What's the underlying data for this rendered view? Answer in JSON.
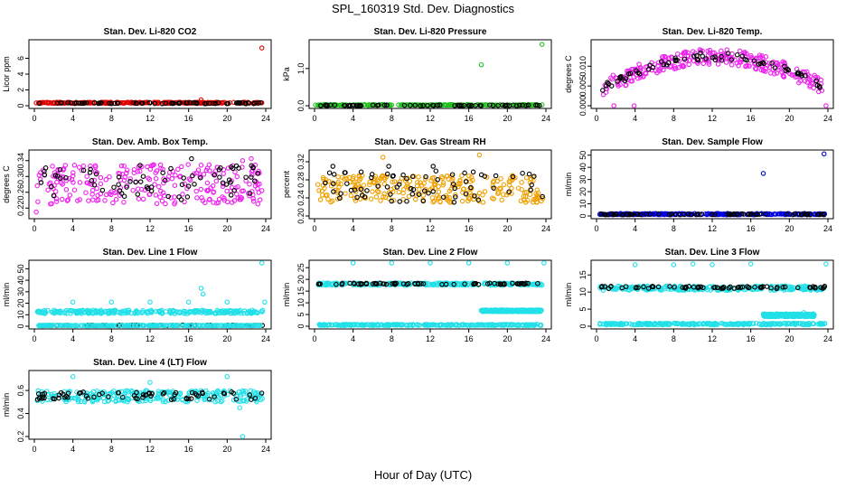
{
  "figure": {
    "title": "SPL_160319  Std. Dev. Diagnostics",
    "x_label": "Hour of Day (UTC)"
  },
  "chart_data": [
    {
      "id": "co2",
      "type": "scatter",
      "title": "Stan. Dev. Li-820 CO2",
      "ylabel": "Licor ppm",
      "xlim": [
        0,
        24
      ],
      "ylim": [
        0,
        8
      ],
      "yticks": [
        0,
        2,
        4,
        6
      ],
      "xticks": [
        0,
        4,
        8,
        12,
        16,
        20,
        24
      ],
      "colors": [
        "#e00000",
        "#000000"
      ],
      "series": [
        {
          "color": "#e00000",
          "baseline": [
            0.3,
            0.45
          ],
          "x": [
            0.2,
            17.3,
            23.6
          ],
          "y": [
            0.35,
            0.75,
            7.3
          ]
        },
        {
          "color": "#000000",
          "baseline": [
            0.25,
            0.4
          ],
          "x": [],
          "y": []
        }
      ]
    },
    {
      "id": "pressure",
      "type": "scatter",
      "title": "Stan. Dev. Li-820 Pressure",
      "ylabel": "kPa",
      "xlim": [
        0,
        24
      ],
      "ylim": [
        0,
        1.7
      ],
      "yticks": [
        0.0,
        1.0
      ],
      "ytick_labels": [
        "0.0",
        "1.0"
      ],
      "xticks": [
        0,
        4,
        8,
        12,
        16,
        20,
        24
      ],
      "colors": [
        "#20c020",
        "#000000"
      ],
      "series": [
        {
          "color": "#20c020",
          "baseline": [
            0.01,
            0.03
          ],
          "x": [
            0.1,
            17.3,
            23.6
          ],
          "y": [
            0.02,
            1.1,
            1.65
          ]
        },
        {
          "color": "#000000",
          "baseline": [
            0.0,
            0.02
          ],
          "x": [],
          "y": []
        }
      ]
    },
    {
      "id": "temp",
      "type": "scatter",
      "title": "Stan. Dev. Li-820 Temp.",
      "ylabel": "degrees C",
      "xlim": [
        0,
        24
      ],
      "ylim": [
        0,
        0.016
      ],
      "yticks": [
        0.0,
        0.005,
        0.01
      ],
      "ytick_labels": [
        "0.000",
        "0.005",
        "0.010"
      ],
      "xticks": [
        0,
        4,
        8,
        12,
        16,
        20,
        24
      ],
      "colors": [
        "#ee22ee",
        "#000000"
      ],
      "series": [
        {
          "color": "#ee22ee",
          "profile": "hump",
          "x": [
            1.8,
            3.9,
            23.8
          ],
          "y": [
            0.0,
            0.0,
            0.0
          ]
        },
        {
          "color": "#000000",
          "profile": "hump",
          "x": [],
          "y": []
        }
      ]
    },
    {
      "id": "ambbox",
      "type": "scatter",
      "title": "Stan. Dev. Amb. Box Temp.",
      "ylabel": "degrees C",
      "xlim": [
        0,
        24
      ],
      "ylim": [
        0.2,
        0.36
      ],
      "yticks": [
        0.22,
        0.26,
        0.3,
        0.34
      ],
      "ytick_labels": [
        "0.22",
        "0.26",
        "0.30",
        "0.34"
      ],
      "xticks": [
        0,
        4,
        8,
        12,
        16,
        20,
        24
      ],
      "colors": [
        "#ee22ee",
        "#000000"
      ],
      "series": [
        {
          "color": "#ee22ee",
          "baseline": [
            0.23,
            0.33
          ],
          "x": [
            0.2,
            21.6,
            22.5
          ],
          "y": [
            0.21,
            0.34,
            0.345
          ]
        },
        {
          "color": "#000000",
          "baseline": [
            0.24,
            0.33
          ],
          "x": [
            16.3
          ],
          "y": [
            0.345
          ]
        }
      ]
    },
    {
      "id": "rh",
      "type": "scatter",
      "title": "Stan. Dev. Gas Stream RH",
      "ylabel": "percent",
      "xlim": [
        0,
        24
      ],
      "ylim": [
        0.2,
        0.34
      ],
      "yticks": [
        0.2,
        0.24,
        0.28,
        0.32
      ],
      "ytick_labels": [
        "0.20",
        "0.24",
        "0.28",
        "0.32"
      ],
      "xticks": [
        0,
        4,
        8,
        12,
        16,
        20,
        24
      ],
      "colors": [
        "#f0a000",
        "#000000"
      ],
      "series": [
        {
          "color": "#f0a000",
          "baseline": [
            0.23,
            0.29
          ],
          "x": [
            7.1,
            17.1
          ],
          "y": [
            0.33,
            0.335
          ]
        },
        {
          "color": "#000000",
          "baseline": [
            0.23,
            0.3
          ],
          "x": [
            1.9,
            7.7,
            12.3
          ],
          "y": [
            0.31,
            0.31,
            0.31
          ]
        }
      ]
    },
    {
      "id": "sampleflow",
      "type": "scatter",
      "title": "Stan. Dev. Sample Flow",
      "ylabel": "ml/min",
      "xlim": [
        0,
        24
      ],
      "ylim": [
        0,
        52
      ],
      "yticks": [
        0,
        10,
        20,
        30,
        40,
        50
      ],
      "xticks": [
        0,
        4,
        8,
        12,
        16,
        20,
        24
      ],
      "colors": [
        "#0000e0",
        "#000000"
      ],
      "series": [
        {
          "color": "#0000e0",
          "baseline": [
            1.0,
            2.0
          ],
          "x": [
            17.3,
            23.6
          ],
          "y": [
            35.0,
            51.0
          ]
        },
        {
          "color": "#000000",
          "baseline": [
            1.0,
            1.8
          ],
          "x": [],
          "y": []
        }
      ]
    },
    {
      "id": "line1",
      "type": "scatter",
      "title": "Stan. Dev. Line 1 Flow",
      "ylabel": "ml/min",
      "xlim": [
        0,
        24
      ],
      "ylim": [
        0,
        55
      ],
      "yticks": [
        0,
        10,
        20,
        30,
        40,
        50
      ],
      "xticks": [
        0,
        4,
        8,
        12,
        16,
        20,
        24
      ],
      "colors": [
        "#22e0e8",
        "#000000"
      ],
      "series": [
        {
          "color": "#22e0e8",
          "baseline": [
            11.0,
            14.0
          ],
          "x": [
            4.0,
            8.0,
            12.0,
            16.0,
            17.3,
            17.5,
            20.0,
            23.6,
            23.9
          ],
          "y": [
            21.0,
            21.0,
            21.0,
            21.0,
            33.0,
            28.0,
            21.0,
            55.0,
            21.0
          ]
        },
        {
          "color": "#000000",
          "baseline": [
            0.5,
            1.0
          ],
          "x": [],
          "y": []
        },
        {
          "color": "#22e0e8",
          "baseline": [
            0.4,
            0.9
          ],
          "x": [],
          "y": []
        }
      ]
    },
    {
      "id": "line2",
      "type": "scatter",
      "title": "Stan. Dev. Line 2 Flow",
      "ylabel": "ml/min",
      "xlim": [
        0,
        24
      ],
      "ylim": [
        0,
        27
      ],
      "yticks": [
        0,
        5,
        10,
        15,
        20,
        25
      ],
      "xticks": [
        0,
        4,
        8,
        12,
        16,
        20,
        24
      ],
      "colors": [
        "#22e0e8",
        "#000000"
      ],
      "series": [
        {
          "color": "#22e0e8",
          "baseline": [
            17.5,
            18.5
          ],
          "x": [
            4.0,
            8.0,
            12.0,
            16.0,
            20.0,
            23.8
          ],
          "y": [
            27.0,
            27.0,
            27.0,
            27.0,
            27.0,
            27.0
          ]
        },
        {
          "color": "#000000",
          "baseline": [
            17.8,
            18.4
          ],
          "x": [],
          "y": []
        },
        {
          "color": "#22e0e8",
          "baseline": [
            0.3,
            0.8
          ],
          "x": [],
          "y": []
        },
        {
          "color": "#22e0e8",
          "baseline": [
            6.2,
            7.0
          ],
          "x_range": [
            17.3,
            24
          ],
          "x": [],
          "y": []
        }
      ]
    },
    {
      "id": "line3",
      "type": "scatter",
      "title": "Stan. Dev. Line 3 Flow",
      "ylabel": "ml/min",
      "xlim": [
        0,
        24
      ],
      "ylim": [
        0,
        18.5
      ],
      "yticks": [
        0,
        5,
        10,
        15
      ],
      "xticks": [
        0,
        4,
        8,
        12,
        16,
        20,
        24
      ],
      "colors": [
        "#22e0e8",
        "#000000"
      ],
      "series": [
        {
          "color": "#22e0e8",
          "baseline": [
            10.5,
            11.8
          ],
          "x": [
            4.0,
            8.0,
            10.0,
            12.0,
            16.0,
            23.8
          ],
          "y": [
            18.0,
            18.0,
            18.2,
            18.0,
            18.2,
            18.2
          ]
        },
        {
          "color": "#000000",
          "baseline": [
            11.0,
            11.7
          ],
          "x": [],
          "y": []
        },
        {
          "color": "#22e0e8",
          "baseline": [
            0.4,
            0.9
          ],
          "x": [],
          "y": []
        },
        {
          "color": "#22e0e8",
          "baseline": [
            2.8,
            3.6
          ],
          "x_range": [
            17.3,
            23
          ],
          "x": [
            21.5
          ],
          "y": [
            4.0
          ]
        }
      ]
    },
    {
      "id": "line4",
      "type": "scatter",
      "title": "Stan. Dev. Line 4 (LT) Flow",
      "ylabel": "ml/min",
      "xlim": [
        0,
        24
      ],
      "ylim": [
        0.2,
        0.75
      ],
      "yticks": [
        0.2,
        0.4,
        0.6
      ],
      "ytick_labels": [
        "0.2",
        "0.4",
        "0.6"
      ],
      "xticks": [
        0,
        4,
        8,
        12,
        16,
        20,
        24
      ],
      "colors": [
        "#22e0e8",
        "#000000"
      ],
      "series": [
        {
          "color": "#22e0e8",
          "baseline": [
            0.5,
            0.6
          ],
          "x": [
            4.0,
            12.0,
            20.0,
            21.6,
            21.3
          ],
          "y": [
            0.72,
            0.67,
            0.72,
            0.2,
            0.45
          ]
        },
        {
          "color": "#000000",
          "baseline": [
            0.52,
            0.59
          ],
          "x": [],
          "y": []
        }
      ]
    }
  ]
}
